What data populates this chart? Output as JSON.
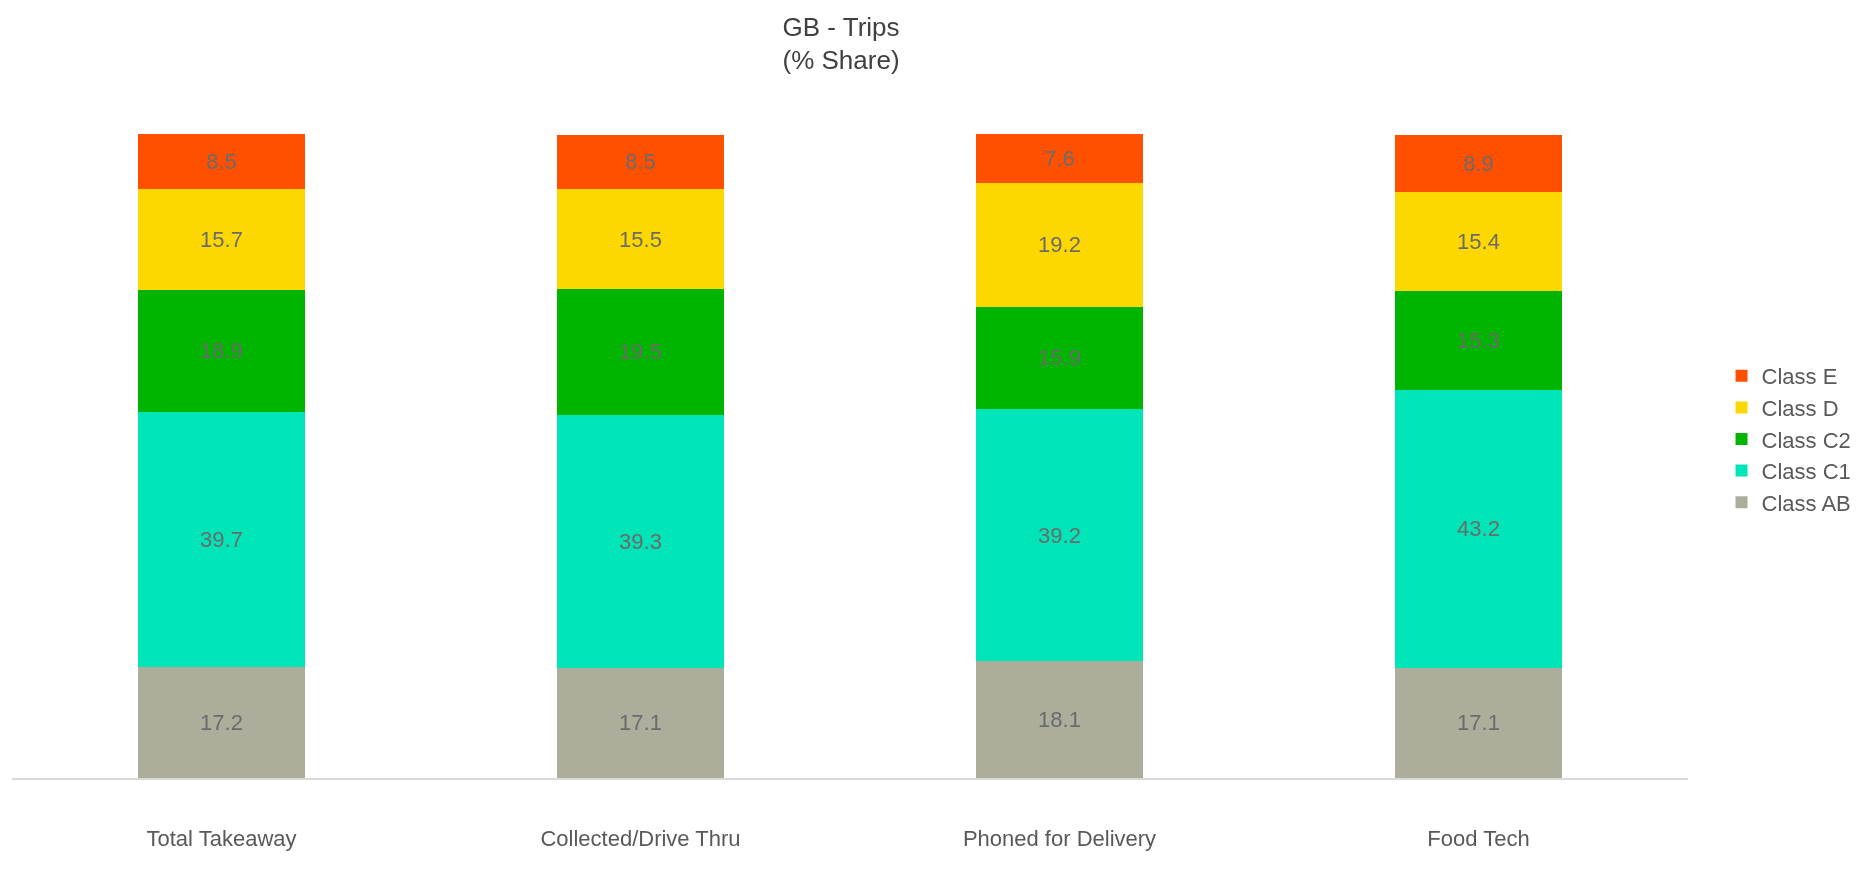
{
  "chart_data": {
    "type": "bar",
    "title": "GB - Trips\n(% Share)",
    "categories": [
      "Total Takeaway",
      "Collected/Drive Thru",
      "Phoned for Delivery",
      "Food Tech"
    ],
    "stacked": true,
    "data_labels": true,
    "legend": "right",
    "tick_labels": "x",
    "series": [
      {
        "name": "Class AB",
        "color": "#adad9c",
        "values": [
          17.2,
          17.1,
          18.1,
          17.1
        ]
      },
      {
        "name": "Class C1",
        "color": "#00e5b8",
        "values": [
          39.7,
          39.3,
          39.2,
          43.2
        ]
      },
      {
        "name": "Class C2",
        "color": "#00b400",
        "values": [
          18.9,
          19.5,
          15.9,
          15.3
        ]
      },
      {
        "name": "Class D",
        "color": "#fcd800",
        "values": [
          15.7,
          15.5,
          19.2,
          15.4
        ]
      },
      {
        "name": "Class E",
        "color": "#ff5000",
        "values": [
          8.5,
          8.5,
          7.6,
          8.9
        ]
      }
    ]
  }
}
